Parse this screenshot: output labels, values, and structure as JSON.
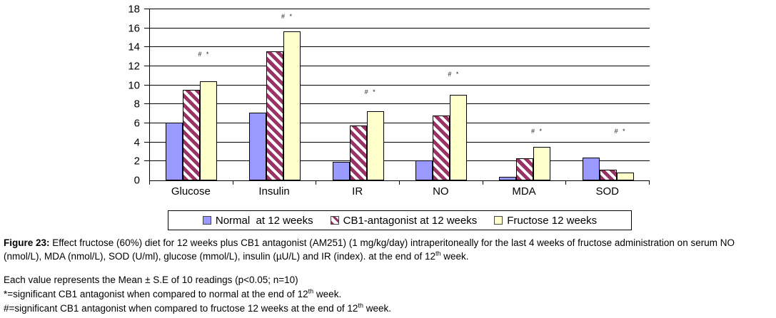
{
  "chart_data": {
    "type": "bar",
    "title": "",
    "categories": [
      "Glucose",
      "Insulin",
      "IR",
      "NO",
      "MDA",
      "SOD"
    ],
    "series": [
      {
        "name": "Normal  at 12 weeks",
        "color": "#9999FF",
        "pattern": "solid",
        "values": [
          6.1,
          7.1,
          1.95,
          2.1,
          0.35,
          2.4
        ]
      },
      {
        "name": "CB1-antagonist at 12 weeks",
        "color": "#993366",
        "pattern": "diagonal-stripes",
        "values": [
          9.5,
          13.6,
          5.75,
          6.8,
          2.35,
          1.1
        ]
      },
      {
        "name": "Fructose 12 weeks",
        "color": "#FFFFCC",
        "pattern": "solid",
        "values": [
          10.45,
          15.7,
          7.25,
          9.0,
          3.5,
          0.8
        ]
      }
    ],
    "annotations": [
      {
        "category": "Glucose",
        "text": "# *",
        "y": 12.9
      },
      {
        "category": "Insulin",
        "text": "# *",
        "y": 16.9
      },
      {
        "category": "IR",
        "text": "# *",
        "y": 8.9
      },
      {
        "category": "NO",
        "text": "# *",
        "y": 10.8
      },
      {
        "category": "MDA",
        "text": "# *",
        "y": 4.8
      },
      {
        "category": "SOD",
        "text": "# *",
        "y": 4.8
      }
    ],
    "ylim": [
      0,
      18
    ],
    "ytick_step": 2,
    "xlabel": "",
    "ylabel": "",
    "grid": true,
    "legend_position": "bottom"
  },
  "figure_caption": {
    "label": "Figure 23:",
    "text": " Effect fructose (60%) diet for 12 weeks plus CB1 antagonist (AM251) (1 mg/kg/day) intraperitoneally for the last 4 weeks of fructose administration on serum NO (nmol/L), MDA (nmol/L), SOD (U/ml), glucose (mmol/L), insulin (µU/L) and IR (index). at the end of 12",
    "sup": "th",
    "tail": " week."
  },
  "notes": [
    {
      "text": "Each value represents the Mean ± S.E of 10 readings (p<0.05; n=10)",
      "sup": "",
      "tail": ""
    },
    {
      "text": "*=significant CB1 antagonist when compared to normal at the end of 12",
      "sup": "th",
      "tail": " week."
    },
    {
      "text": "#=significant CB1 antagonist when compared to fructose 12 weeks at the end of 12",
      "sup": "th",
      "tail": " week."
    }
  ]
}
